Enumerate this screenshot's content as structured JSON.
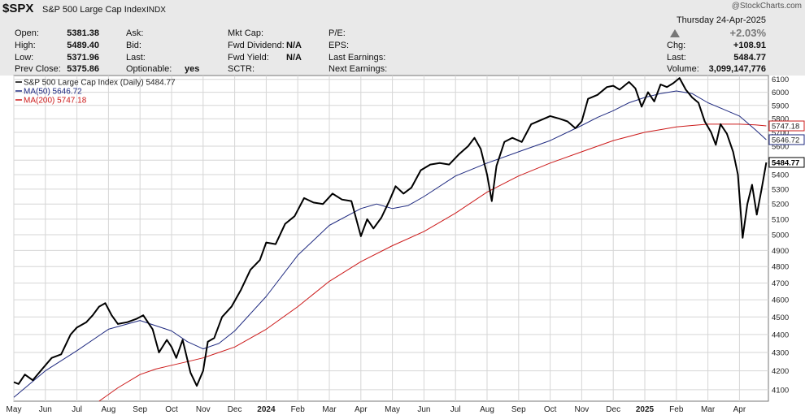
{
  "header": {
    "symbol": "$SPX",
    "name": "S&P 500 Large Cap Index",
    "exchange": "INDX",
    "watermark": "@StockCharts.com",
    "date": "Thursday  24-Apr-2025",
    "change_pct": "+2.03%",
    "fields": {
      "open_label": "Open:",
      "open": "5381.38",
      "high_label": "High:",
      "high": "5489.40",
      "low_label": "Low:",
      "low": "5371.96",
      "prev_label": "Prev Close:",
      "prev": "5375.86",
      "ask_label": "Ask:",
      "bid_label": "Bid:",
      "last_label": "Last:",
      "optionable_label": "Optionable:",
      "optionable": "yes",
      "mktcap_label": "Mkt Cap:",
      "fwddiv_label": "Fwd Dividend:",
      "fwddiv": "N/A",
      "fwdyield_label": "Fwd Yield:",
      "fwdyield": "N/A",
      "sctr_label": "SCTR:",
      "pe_label": "P/E:",
      "eps_label": "EPS:",
      "lastearn_label": "Last Earnings:",
      "nextearn_label": "Next Earnings:",
      "chg_label": "Chg:",
      "chg": "+108.91",
      "last2_label": "Last:",
      "last2": "5484.77",
      "volume_label": "Volume:",
      "volume": "3,099,147,776"
    }
  },
  "chart_data": {
    "type": "line",
    "legend": [
      {
        "label": "S&P 500 Large Cap Index (Daily) 5484.77",
        "color": "#000000"
      },
      {
        "label": "MA(50) 5646.72",
        "color": "#1f2a80"
      },
      {
        "label": "MA(200) 5747.18",
        "color": "#cc1a1a"
      }
    ],
    "x_labels": [
      "May",
      "Jun",
      "Jul",
      "Aug",
      "Sep",
      "Oct",
      "Nov",
      "Dec",
      "2024",
      "Feb",
      "Mar",
      "Apr",
      "May",
      "Jun",
      "Jul",
      "Aug",
      "Sep",
      "Oct",
      "Nov",
      "Dec",
      "2025",
      "Feb",
      "Mar",
      "Apr"
    ],
    "y_ticks": [
      4100,
      4200,
      4300,
      4400,
      4500,
      4600,
      4700,
      4800,
      4900,
      5000,
      5100,
      5200,
      5300,
      5400,
      5500,
      5600,
      5700,
      5800,
      5900,
      6000,
      6100
    ],
    "ylim": [
      4040,
      6130
    ],
    "yscale": "log",
    "price_tags": [
      {
        "text": "5747.18",
        "value": 5747.18,
        "color": "#cc1a1a"
      },
      {
        "text": "5646.72",
        "value": 5646.72,
        "color": "#1f2a80"
      },
      {
        "text": "5484.77",
        "value": 5484.77,
        "color": "#000000"
      }
    ],
    "grid": true,
    "x_positions": [
      0,
      1,
      2,
      3,
      4,
      5,
      6,
      7,
      8,
      9,
      10,
      11,
      12,
      13,
      14,
      15,
      16,
      17,
      18,
      19,
      20,
      21,
      22,
      23
    ],
    "series": [
      {
        "name": "S&P 500 Large Cap Index (Daily)",
        "color": "#000000",
        "x": [
          0,
          0.15,
          0.35,
          0.6,
          0.9,
          1.2,
          1.5,
          1.8,
          2.0,
          2.3,
          2.5,
          2.7,
          2.9,
          3.1,
          3.3,
          3.6,
          3.9,
          4.1,
          4.4,
          4.6,
          4.85,
          5.0,
          5.15,
          5.35,
          5.6,
          5.8,
          6.0,
          6.15,
          6.35,
          6.6,
          6.9,
          7.2,
          7.5,
          7.8,
          8.0,
          8.3,
          8.6,
          8.9,
          9.2,
          9.5,
          9.8,
          10.1,
          10.4,
          10.7,
          11.0,
          11.2,
          11.4,
          11.65,
          11.9,
          12.1,
          12.35,
          12.6,
          12.9,
          13.2,
          13.5,
          13.8,
          14.1,
          14.4,
          14.6,
          14.8,
          15.0,
          15.15,
          15.3,
          15.55,
          15.8,
          16.1,
          16.4,
          16.7,
          17.0,
          17.3,
          17.55,
          17.8,
          18.0,
          18.2,
          18.5,
          18.8,
          19.0,
          19.2,
          19.5,
          19.7,
          19.9,
          20.1,
          20.3,
          20.5,
          20.7,
          20.9,
          21.1,
          21.3,
          21.5,
          21.7,
          21.9,
          22.1,
          22.25,
          22.4,
          22.6,
          22.8,
          22.95,
          23.1,
          23.25,
          23.4,
          23.55,
          23.7,
          23.85
        ],
        "y": [
          4140,
          4130,
          4180,
          4150,
          4210,
          4270,
          4290,
          4400,
          4440,
          4470,
          4510,
          4560,
          4580,
          4510,
          4460,
          4470,
          4490,
          4510,
          4430,
          4300,
          4370,
          4330,
          4270,
          4370,
          4190,
          4120,
          4200,
          4360,
          4380,
          4500,
          4560,
          4660,
          4780,
          4840,
          4950,
          4940,
          5070,
          5120,
          5240,
          5210,
          5200,
          5270,
          5230,
          5220,
          4990,
          5100,
          5040,
          5110,
          5220,
          5320,
          5270,
          5310,
          5430,
          5470,
          5480,
          5470,
          5540,
          5600,
          5660,
          5580,
          5400,
          5220,
          5460,
          5630,
          5660,
          5630,
          5760,
          5790,
          5820,
          5800,
          5780,
          5730,
          5780,
          5950,
          5980,
          6040,
          6050,
          6020,
          6080,
          6030,
          5890,
          6000,
          5930,
          6060,
          6040,
          6070,
          6110,
          6020,
          5960,
          5920,
          5780,
          5700,
          5610,
          5760,
          5690,
          5560,
          5400,
          4980,
          5200,
          5330,
          5130,
          5300,
          5484
        ]
      },
      {
        "name": "MA(50)",
        "color": "#1f2a80",
        "x": [
          0,
          1,
          2,
          3,
          4,
          5,
          5.5,
          6,
          6.5,
          7,
          8,
          9,
          10,
          11,
          11.5,
          12,
          12.5,
          13,
          14,
          15,
          16,
          17,
          18,
          18.5,
          19,
          19.5,
          20,
          20.5,
          21,
          21.5,
          22,
          22.5,
          23,
          23.5,
          23.85
        ],
        "y": [
          4060,
          4200,
          4310,
          4430,
          4480,
          4420,
          4360,
          4320,
          4350,
          4420,
          4620,
          4870,
          5060,
          5170,
          5200,
          5170,
          5190,
          5250,
          5390,
          5480,
          5560,
          5640,
          5750,
          5810,
          5860,
          5920,
          5960,
          5990,
          6010,
          5990,
          5920,
          5870,
          5820,
          5720,
          5646.72
        ]
      },
      {
        "name": "MA(200)",
        "color": "#cc1a1a",
        "x": [
          2.7,
          3.3,
          4,
          4.5,
          5,
          5.5,
          6,
          6.5,
          7,
          8,
          9,
          10,
          11,
          12,
          13,
          14,
          15,
          16,
          17,
          18,
          19,
          20,
          20.5,
          21,
          21.5,
          22,
          22.5,
          23,
          23.5,
          23.85
        ],
        "y": [
          4040,
          4110,
          4180,
          4210,
          4230,
          4250,
          4270,
          4300,
          4330,
          4430,
          4560,
          4710,
          4830,
          4930,
          5020,
          5140,
          5280,
          5390,
          5480,
          5560,
          5640,
          5700,
          5720,
          5740,
          5750,
          5760,
          5760,
          5760,
          5755,
          5747.18
        ]
      }
    ]
  }
}
